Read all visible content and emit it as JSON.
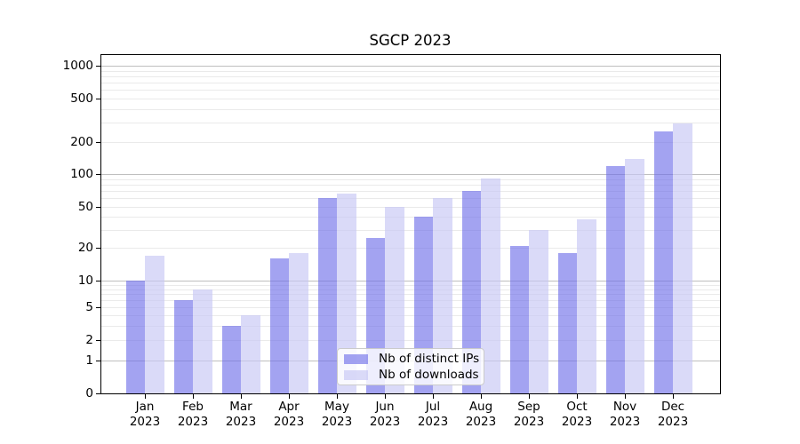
{
  "title": "SGCP 2023",
  "colors": {
    "bar_distinct_ips": "rgba(106,106,232,0.62)",
    "bar_downloads": "rgba(198,198,244,0.65)",
    "grid_major": "#bfbfbf",
    "grid_minor": "#eaeaea",
    "axis": "#000000",
    "background": "#ffffff",
    "legend_border": "#cbcbcb"
  },
  "legend": {
    "items": [
      {
        "label": "Nb of distinct IPs"
      },
      {
        "label": "Nb of downloads"
      }
    ]
  },
  "chart_data": {
    "type": "bar",
    "title": "SGCP 2023",
    "categories": [
      "Jan 2023",
      "Feb 2023",
      "Mar 2023",
      "Apr 2023",
      "May 2023",
      "Jun 2023",
      "Jul 2023",
      "Aug 2023",
      "Sep 2023",
      "Oct 2023",
      "Nov 2023",
      "Dec 2023"
    ],
    "series": [
      {
        "name": "Nb of distinct IPs",
        "values": [
          10,
          6,
          3,
          16,
          60,
          25,
          40,
          70,
          21,
          18,
          120,
          250
        ]
      },
      {
        "name": "Nb of downloads",
        "values": [
          17,
          8,
          4,
          18,
          66,
          50,
          60,
          92,
          30,
          38,
          140,
          295
        ]
      }
    ],
    "xlabel": "",
    "ylabel": "",
    "yscale": "log-like with 0 baseline",
    "yticks": [
      0,
      1,
      2,
      5,
      10,
      20,
      50,
      100,
      200,
      500,
      1000
    ],
    "ylim": [
      0,
      1250
    ],
    "grid": "horizontal, log minor + decade major",
    "legend_position": "inside, lower center"
  }
}
